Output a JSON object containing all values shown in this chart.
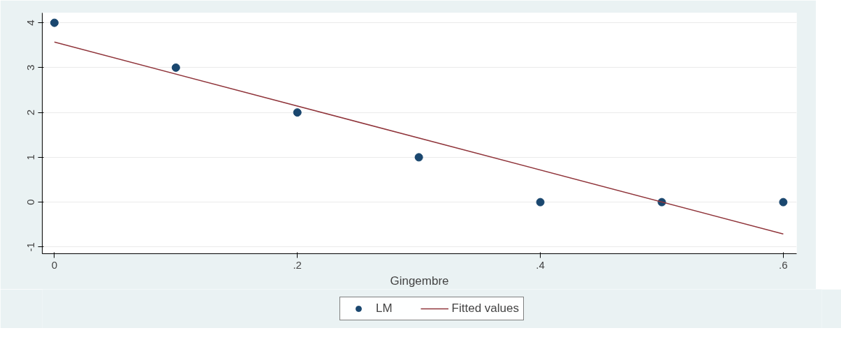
{
  "chart_data": {
    "type": "scatter",
    "xlabel": "Gingembre",
    "x": [
      0,
      0.1,
      0.2,
      0.3,
      0.4,
      0.5,
      0.6
    ],
    "series": [
      {
        "name": "LM",
        "color": "#1a476f",
        "marker": "circle",
        "values": [
          4,
          3,
          2,
          1,
          0,
          0,
          0
        ]
      },
      {
        "name": "Fitted values",
        "color": "#90353b",
        "type": "line",
        "line_style": "solid",
        "x": [
          0,
          0.6
        ],
        "values": [
          3.57,
          -0.71
        ]
      }
    ],
    "xlim": [
      -0.01,
      0.611
    ],
    "ylim": [
      -1.15,
      4.22
    ],
    "xticks": [
      {
        "value": 0,
        "label": "0"
      },
      {
        "value": 0.2,
        "label": ".2"
      },
      {
        "value": 0.4,
        "label": ".4"
      },
      {
        "value": 0.6,
        "label": ".6"
      }
    ],
    "yticks": [
      -1,
      0,
      1,
      2,
      3,
      4
    ],
    "grid": "y",
    "legend": "bottom"
  }
}
